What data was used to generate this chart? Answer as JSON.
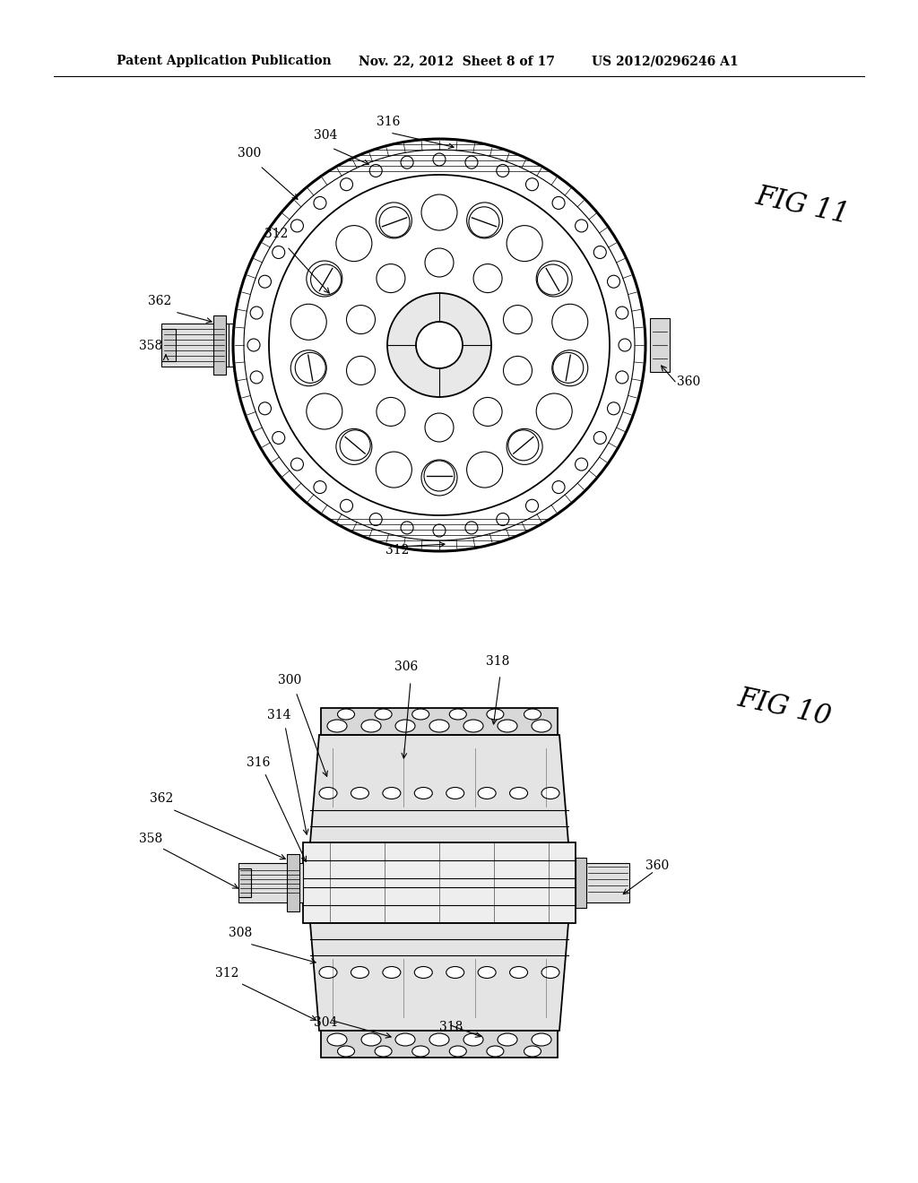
{
  "bg_color": "#ffffff",
  "header_text1": "Patent Application Publication",
  "header_text2": "Nov. 22, 2012  Sheet 8 of 17",
  "header_text3": "US 2012/0296246 A1",
  "fig11_label": "FIG 11",
  "fig10_label": "FIG 10",
  "line_color": "#000000"
}
